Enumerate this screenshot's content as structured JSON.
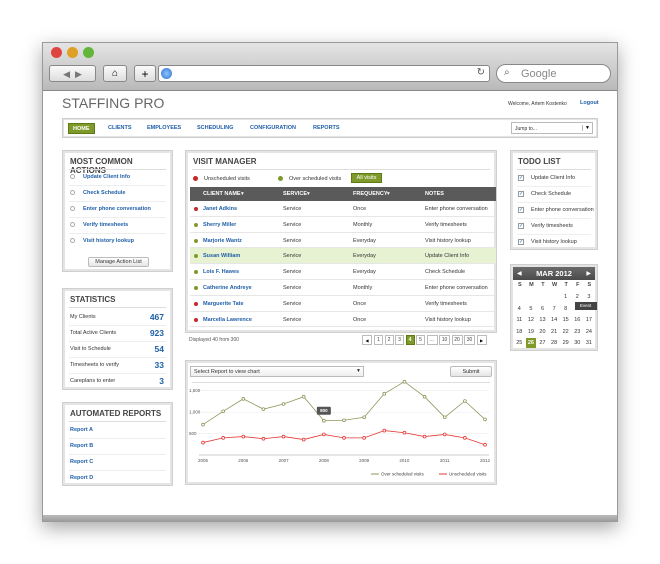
{
  "browser": {
    "search_placeholder": "Google"
  },
  "header": {
    "title": "STAFFING PRO",
    "welcome": "Welcome, Artem Kostenko",
    "logout": "Logout"
  },
  "nav": {
    "items": [
      "HOME",
      "CLIENTS",
      "EMPLOYEES",
      "SCHEDULING",
      "CONFIGURATION",
      "REPORTS"
    ],
    "active_index": 0,
    "jump_to": "Jump to..."
  },
  "actions": {
    "title": "MOST COMMON ACTIONS",
    "items": [
      "Update Client Info",
      "Check Schedule",
      "Enter phone conversation",
      "Verify timesheets",
      "Visit history lookup"
    ],
    "button": "Manage Action List"
  },
  "statistics": {
    "title": "STATISTICS",
    "rows": [
      {
        "label": "My Clients",
        "value": 467
      },
      {
        "label": "Total Active Clients",
        "value": 923
      },
      {
        "label": "Visit to Schedule",
        "value": 54
      },
      {
        "label": "Timesheets to verify",
        "value": 33
      },
      {
        "label": "Careplans to enter",
        "value": 3
      }
    ]
  },
  "reports": {
    "title": "AUTOMATED REPORTS",
    "items": [
      "Report A",
      "Report B",
      "Report C",
      "Report D"
    ]
  },
  "visit_manager": {
    "title": "VISIT MANAGER",
    "legend": [
      {
        "name": "Unscheduled visits",
        "color": "#c62828"
      },
      {
        "name": "Over scheduled visits",
        "color": "#7f9a2a"
      }
    ],
    "filter_button": "All visits",
    "columns": [
      "CLIENT NAME",
      "SERVICE",
      "FREQUENCY",
      "NOTES"
    ],
    "rows": [
      {
        "color": "#c62828",
        "cells": [
          "Janet Adkins",
          "Service",
          "Once",
          "Enter phone conversation"
        ]
      },
      {
        "color": "#7f9a2a",
        "cells": [
          "Sherry Miller",
          "Service",
          "Monthly",
          "Verify timesheets"
        ]
      },
      {
        "color": "#7f9a2a",
        "cells": [
          "Marjorie Wantz",
          "Service",
          "Everyday",
          "Visit history lookup"
        ]
      },
      {
        "color": "#7f9a2a",
        "cells": [
          "Susan William",
          "Service",
          "Everyday",
          "Update Client Info"
        ]
      },
      {
        "color": "#7f9a2a",
        "cells": [
          "Lois F. Hawes",
          "Service",
          "Everyday",
          "Check Schedule"
        ]
      },
      {
        "color": "#7f9a2a",
        "cells": [
          "Catherine Andreye",
          "Service",
          "Monthly",
          "Enter phone conversation"
        ]
      },
      {
        "color": "#c62828",
        "cells": [
          "Marguerite Tate",
          "Service",
          "Once",
          "Verify timesheets"
        ]
      },
      {
        "color": "#c62828",
        "cells": [
          "Marcella Lawrence",
          "Service",
          "Once",
          "Visit history lookup"
        ]
      }
    ],
    "highlighted_row": 3,
    "displayed": "Displayed 40 from 300",
    "pages": [
      "1",
      "2",
      "3",
      "4",
      "5",
      "...",
      "10",
      "20",
      "30"
    ],
    "current_page": 3
  },
  "chart": {
    "type": "line",
    "select": "Select Report to view chart",
    "submit": "Submit",
    "categories": [
      "2005",
      null,
      "2006",
      null,
      "2007",
      null,
      "2008",
      null,
      "2009",
      null,
      "2010",
      null,
      "2011",
      null,
      "2012"
    ],
    "ylim": [
      0,
      1750
    ],
    "yticks": [
      {
        "value": 500,
        "label": "500"
      },
      {
        "value": 1000,
        "label": "1,000"
      },
      {
        "value": 1500,
        "label": "1,500"
      }
    ],
    "series": [
      {
        "name": "Over scheduled visits",
        "color": "#8a9a5b",
        "values": [
          710,
          1020,
          1310,
          1070,
          1190,
          1360,
          800,
          810,
          880,
          1430,
          1710,
          1360,
          880,
          1260,
          830
        ]
      },
      {
        "name": "Unscheduled visits",
        "color": "#e53935",
        "values": [
          290,
          400,
          430,
          380,
          430,
          360,
          480,
          400,
          400,
          570,
          520,
          430,
          480,
          400,
          240
        ]
      }
    ],
    "annotations": [
      {
        "text": "800",
        "series": 0,
        "index": 6
      }
    ]
  },
  "todo": {
    "title": "TODO LIST",
    "items": [
      "Update Client Info",
      "Check Schedule",
      "Enter phone conversation",
      "Verify timesheets",
      "Visit history lookup"
    ]
  },
  "calendar": {
    "title": "MAR 2012",
    "weekdays": [
      "S",
      "M",
      "T",
      "W",
      "T",
      "F",
      "S"
    ],
    "weeks": [
      [
        null,
        null,
        null,
        null,
        1,
        2,
        3
      ],
      [
        4,
        5,
        6,
        7,
        8,
        9,
        10
      ],
      [
        11,
        12,
        13,
        14,
        15,
        16,
        17
      ],
      [
        18,
        19,
        20,
        21,
        22,
        23,
        24
      ],
      [
        25,
        26,
        27,
        28,
        29,
        30,
        31
      ]
    ],
    "selected_day": 26,
    "event": {
      "label": "Event",
      "day": 10
    }
  }
}
